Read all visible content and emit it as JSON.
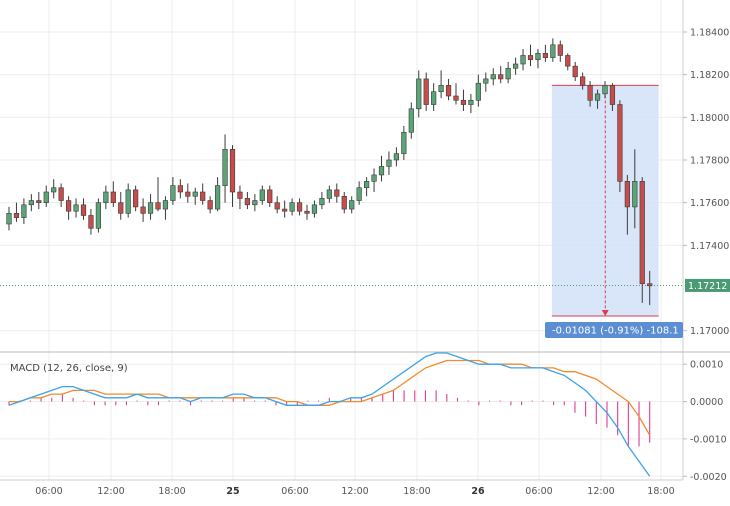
{
  "chart_data": [
    {
      "type": "candlestick",
      "panel": "price",
      "price_axis": {
        "ticks": [
          "1.18400",
          "1.18200",
          "1.18000",
          "1.17800",
          "1.17600",
          "1.17400",
          "1.17000"
        ],
        "range": [
          1.169,
          1.1855
        ]
      },
      "time_axis": {
        "labels": [
          "06:00",
          "12:00",
          "18:00",
          "25",
          "06:00",
          "12:00",
          "18:00",
          "26",
          "06:00",
          "12:00",
          "18:00"
        ]
      },
      "last_price": {
        "label": "1.17212",
        "value": 1.17212,
        "color": "#4a9a73"
      },
      "measure": {
        "start_price": 1.1815,
        "end_price": 1.17069,
        "label": "-0.01081 (-0.91%) -108.1",
        "fill_color": "#cfe0f7",
        "line_color": "#e03a4e"
      },
      "candles": {
        "up_color": "#5aa577",
        "down_color": "#c64d4d",
        "ohlc": [
          [
            1.175,
            1.1758,
            1.1747,
            1.1755
          ],
          [
            1.1755,
            1.176,
            1.1751,
            1.1753
          ],
          [
            1.1753,
            1.1762,
            1.175,
            1.1759
          ],
          [
            1.1759,
            1.1764,
            1.1756,
            1.1761
          ],
          [
            1.1761,
            1.1765,
            1.1757,
            1.176
          ],
          [
            1.176,
            1.1768,
            1.1758,
            1.1765
          ],
          [
            1.1765,
            1.1771,
            1.1762,
            1.1767
          ],
          [
            1.1767,
            1.1769,
            1.1758,
            1.1761
          ],
          [
            1.1761,
            1.1763,
            1.1752,
            1.1756
          ],
          [
            1.1756,
            1.1762,
            1.1753,
            1.1759
          ],
          [
            1.1759,
            1.1762,
            1.1752,
            1.1754
          ],
          [
            1.1754,
            1.1757,
            1.1745,
            1.1748
          ],
          [
            1.1748,
            1.1762,
            1.1746,
            1.176
          ],
          [
            1.176,
            1.1768,
            1.1757,
            1.1765
          ],
          [
            1.1765,
            1.177,
            1.1758,
            1.176
          ],
          [
            1.176,
            1.1765,
            1.1752,
            1.1755
          ],
          [
            1.1755,
            1.1769,
            1.1753,
            1.1766
          ],
          [
            1.1766,
            1.1768,
            1.1756,
            1.1758
          ],
          [
            1.1758,
            1.1762,
            1.1751,
            1.1755
          ],
          [
            1.1755,
            1.1764,
            1.1752,
            1.176
          ],
          [
            1.176,
            1.1772,
            1.1756,
            1.1757
          ],
          [
            1.1757,
            1.1763,
            1.1752,
            1.1761
          ],
          [
            1.1761,
            1.1772,
            1.1759,
            1.1768
          ],
          [
            1.1768,
            1.1771,
            1.1762,
            1.1765
          ],
          [
            1.1765,
            1.1769,
            1.176,
            1.1763
          ],
          [
            1.1763,
            1.1767,
            1.1759,
            1.1765
          ],
          [
            1.1765,
            1.1769,
            1.1759,
            1.1761
          ],
          [
            1.1761,
            1.1763,
            1.1755,
            1.1757
          ],
          [
            1.1757,
            1.1772,
            1.1756,
            1.1768
          ],
          [
            1.1768,
            1.1792,
            1.176,
            1.1785
          ],
          [
            1.1785,
            1.1787,
            1.1758,
            1.1765
          ],
          [
            1.1765,
            1.1768,
            1.1757,
            1.1762
          ],
          [
            1.1762,
            1.1765,
            1.1757,
            1.1759
          ],
          [
            1.1759,
            1.1764,
            1.1756,
            1.1761
          ],
          [
            1.1761,
            1.1768,
            1.1759,
            1.1766
          ],
          [
            1.1766,
            1.1768,
            1.1758,
            1.176
          ],
          [
            1.176,
            1.1763,
            1.1755,
            1.1757
          ],
          [
            1.1757,
            1.1761,
            1.1753,
            1.1756
          ],
          [
            1.1756,
            1.1762,
            1.1754,
            1.176
          ],
          [
            1.176,
            1.1762,
            1.1754,
            1.1756
          ],
          [
            1.1756,
            1.1759,
            1.1752,
            1.1755
          ],
          [
            1.1755,
            1.1761,
            1.1753,
            1.1759
          ],
          [
            1.1759,
            1.1765,
            1.1757,
            1.1762
          ],
          [
            1.1762,
            1.1768,
            1.176,
            1.1766
          ],
          [
            1.1766,
            1.1769,
            1.176,
            1.1763
          ],
          [
            1.1763,
            1.1765,
            1.1755,
            1.1757
          ],
          [
            1.1757,
            1.1763,
            1.1755,
            1.1761
          ],
          [
            1.1761,
            1.177,
            1.1759,
            1.1767
          ],
          [
            1.1767,
            1.1772,
            1.1763,
            1.177
          ],
          [
            1.177,
            1.1776,
            1.1765,
            1.1773
          ],
          [
            1.1773,
            1.1782,
            1.177,
            1.1777
          ],
          [
            1.1777,
            1.1784,
            1.1773,
            1.178
          ],
          [
            1.178,
            1.1786,
            1.1777,
            1.1783
          ],
          [
            1.1783,
            1.1796,
            1.178,
            1.1793
          ],
          [
            1.1793,
            1.1807,
            1.179,
            1.1804
          ],
          [
            1.1804,
            1.1822,
            1.18,
            1.1818
          ],
          [
            1.1818,
            1.1821,
            1.1803,
            1.1806
          ],
          [
            1.1806,
            1.1816,
            1.1803,
            1.1812
          ],
          [
            1.1812,
            1.1822,
            1.1809,
            1.1815
          ],
          [
            1.1815,
            1.1818,
            1.1808,
            1.181
          ],
          [
            1.181,
            1.1816,
            1.1806,
            1.1808
          ],
          [
            1.1808,
            1.1813,
            1.1803,
            1.1806
          ],
          [
            1.1806,
            1.1811,
            1.1802,
            1.1808
          ],
          [
            1.1808,
            1.182,
            1.1805,
            1.1816
          ],
          [
            1.1816,
            1.1821,
            1.1812,
            1.1818
          ],
          [
            1.1818,
            1.1823,
            1.1815,
            1.182
          ],
          [
            1.182,
            1.1824,
            1.1816,
            1.1818
          ],
          [
            1.1818,
            1.1826,
            1.1816,
            1.1823
          ],
          [
            1.1823,
            1.1828,
            1.182,
            1.1825
          ],
          [
            1.1825,
            1.1832,
            1.1822,
            1.1829
          ],
          [
            1.1829,
            1.1834,
            1.1824,
            1.1827
          ],
          [
            1.1827,
            1.1832,
            1.1823,
            1.183
          ],
          [
            1.183,
            1.1834,
            1.1826,
            1.1828
          ],
          [
            1.1828,
            1.1837,
            1.1826,
            1.1834
          ],
          [
            1.1834,
            1.1836,
            1.1826,
            1.1829
          ],
          [
            1.1829,
            1.183,
            1.1822,
            1.1824
          ],
          [
            1.1824,
            1.1826,
            1.1817,
            1.1819
          ],
          [
            1.1819,
            1.1821,
            1.1813,
            1.1815
          ],
          [
            1.1815,
            1.1817,
            1.1805,
            1.1808
          ],
          [
            1.1808,
            1.1813,
            1.1804,
            1.1811
          ],
          [
            1.1811,
            1.1817,
            1.1809,
            1.1815
          ],
          [
            1.1815,
            1.1816,
            1.1803,
            1.1806
          ],
          [
            1.1806,
            1.1808,
            1.1765,
            1.177
          ],
          [
            1.177,
            1.1773,
            1.1745,
            1.1758
          ],
          [
            1.1758,
            1.1785,
            1.1748,
            1.177
          ],
          [
            1.177,
            1.1772,
            1.1713,
            1.1722
          ],
          [
            1.1722,
            1.1728,
            1.1712,
            1.1721
          ]
        ]
      }
    },
    {
      "type": "line",
      "panel": "macd",
      "title": "MACD (12, 26, close, 9)",
      "y_axis": {
        "ticks": [
          "0.0010",
          "0.0000",
          "-0.0010",
          "-0.0020"
        ],
        "range": [
          -0.0021,
          0.0013
        ]
      },
      "series": [
        {
          "role": "macd",
          "color": "#3ba3ec",
          "values": [
            -0.0001,
            0.0,
            0.0001,
            0.0002,
            0.0003,
            0.0004,
            0.0004,
            0.0003,
            0.0002,
            0.0001,
            0.0001,
            0.0001,
            0.0002,
            0.0001,
            0.0001,
            0.0001,
            0.0001,
            0.0,
            0.0001,
            0.0001,
            0.0001,
            0.0002,
            0.0002,
            0.0001,
            0.0001,
            0.0,
            -0.0001,
            -0.0001,
            -0.0001,
            -0.0001,
            0.0,
            0.0,
            0.0001,
            0.0001,
            0.0002,
            0.0004,
            0.0006,
            0.0008,
            0.001,
            0.0012,
            0.0013,
            0.0013,
            0.0012,
            0.0011,
            0.001,
            0.001,
            0.001,
            0.0009,
            0.0009,
            0.0009,
            0.0009,
            0.0008,
            0.0007,
            0.0005,
            0.0003,
            0.0,
            -0.0003,
            -0.0007,
            -0.0012,
            -0.0016,
            -0.002
          ]
        },
        {
          "role": "signal",
          "color": "#f28a2e",
          "values": [
            0.0,
            0.0,
            0.0001,
            0.0001,
            0.0002,
            0.0002,
            0.0003,
            0.0003,
            0.0003,
            0.0002,
            0.0002,
            0.0002,
            0.0002,
            0.0002,
            0.0002,
            0.0001,
            0.0001,
            0.0001,
            0.0001,
            0.0001,
            0.0001,
            0.0001,
            0.0001,
            0.0001,
            0.0001,
            0.0001,
            0.0,
            0.0,
            -0.0001,
            -0.0001,
            -0.0001,
            0.0,
            0.0,
            0.0,
            0.0001,
            0.0002,
            0.0003,
            0.0005,
            0.0007,
            0.0009,
            0.001,
            0.0011,
            0.0011,
            0.0011,
            0.0011,
            0.001,
            0.001,
            0.001,
            0.001,
            0.0009,
            0.0009,
            0.0009,
            0.0008,
            0.0008,
            0.0007,
            0.0006,
            0.0004,
            0.0002,
            0.0,
            -0.0004,
            -0.0009
          ]
        },
        {
          "role": "histogram",
          "color": "#e23b8f",
          "values": [
            -0.0001,
            0.0,
            0.0,
            0.0001,
            0.0001,
            0.0002,
            0.0001,
            0.0,
            -0.0001,
            -0.0001,
            -0.0001,
            -0.0001,
            0.0,
            -0.0001,
            -0.0001,
            0.0,
            0.0,
            -0.0001,
            0.0,
            0.0,
            0.0,
            0.0001,
            0.0001,
            0.0,
            0.0,
            -0.0001,
            -0.0001,
            -0.0001,
            0.0,
            0.0,
            0.0001,
            0.0,
            0.0001,
            0.0001,
            0.0001,
            0.0002,
            0.0003,
            0.0003,
            0.0003,
            0.0003,
            0.0003,
            0.0002,
            0.0001,
            0.0,
            -0.0001,
            0.0,
            0.0,
            -0.0001,
            -0.0001,
            0.0,
            0.0,
            -0.0001,
            -0.0001,
            -0.0003,
            -0.0004,
            -0.0006,
            -0.0007,
            -0.0009,
            -0.0012,
            -0.0012,
            -0.0011
          ]
        }
      ]
    }
  ]
}
